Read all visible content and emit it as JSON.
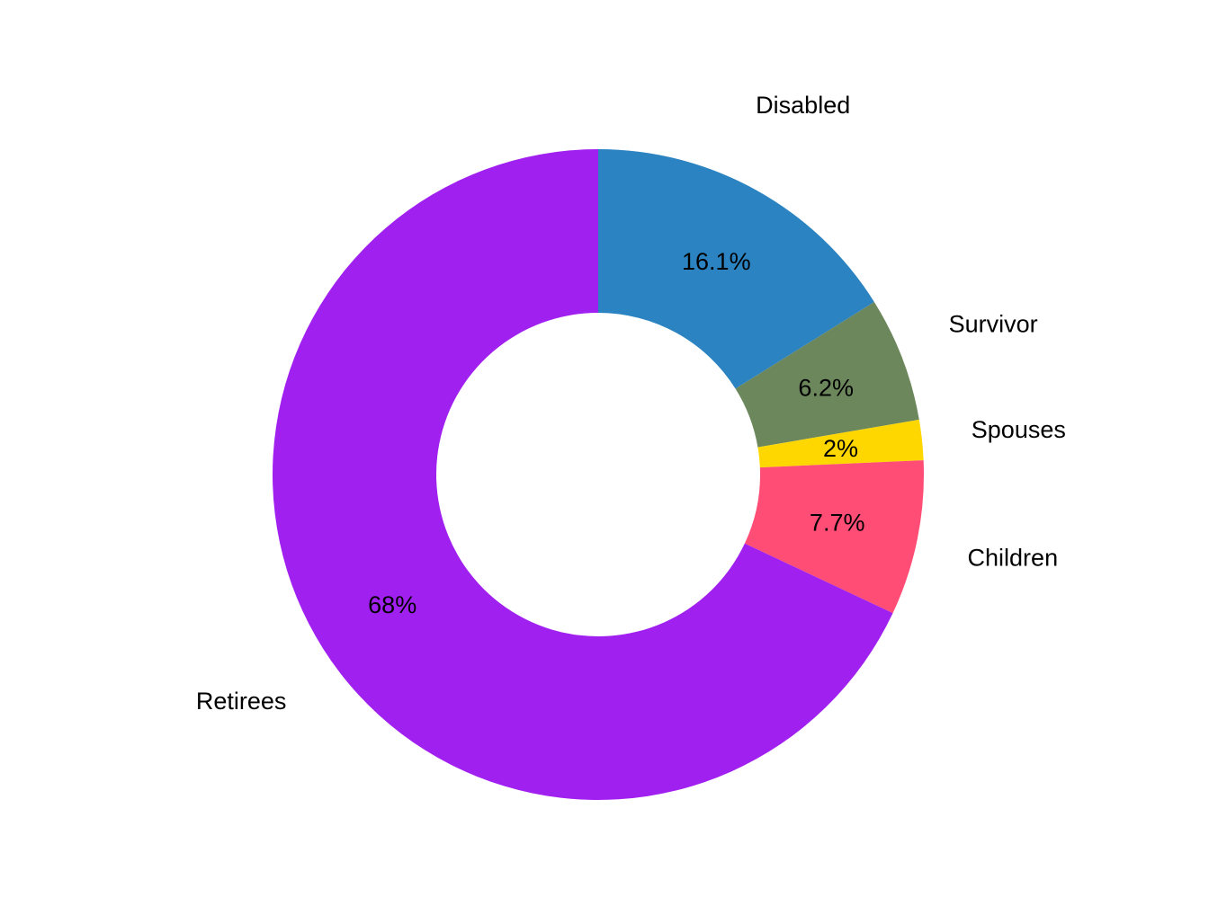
{
  "chart_data": {
    "type": "pie",
    "variant": "donut",
    "title": "",
    "categories": [
      "Disabled",
      "Survivor",
      "Spouses",
      "Children",
      "Retirees"
    ],
    "values": [
      16.1,
      6.2,
      2.0,
      7.7,
      68.0
    ],
    "value_labels": [
      "16.1%",
      "6.2%",
      "2%",
      "7.7%",
      "68%"
    ],
    "colors": [
      "#2B83C1",
      "#6C875C",
      "#FFD700",
      "#FF4D76",
      "#A020F0"
    ],
    "start_angle": "12 o'clock",
    "direction": "clockwise",
    "legend": "none"
  }
}
